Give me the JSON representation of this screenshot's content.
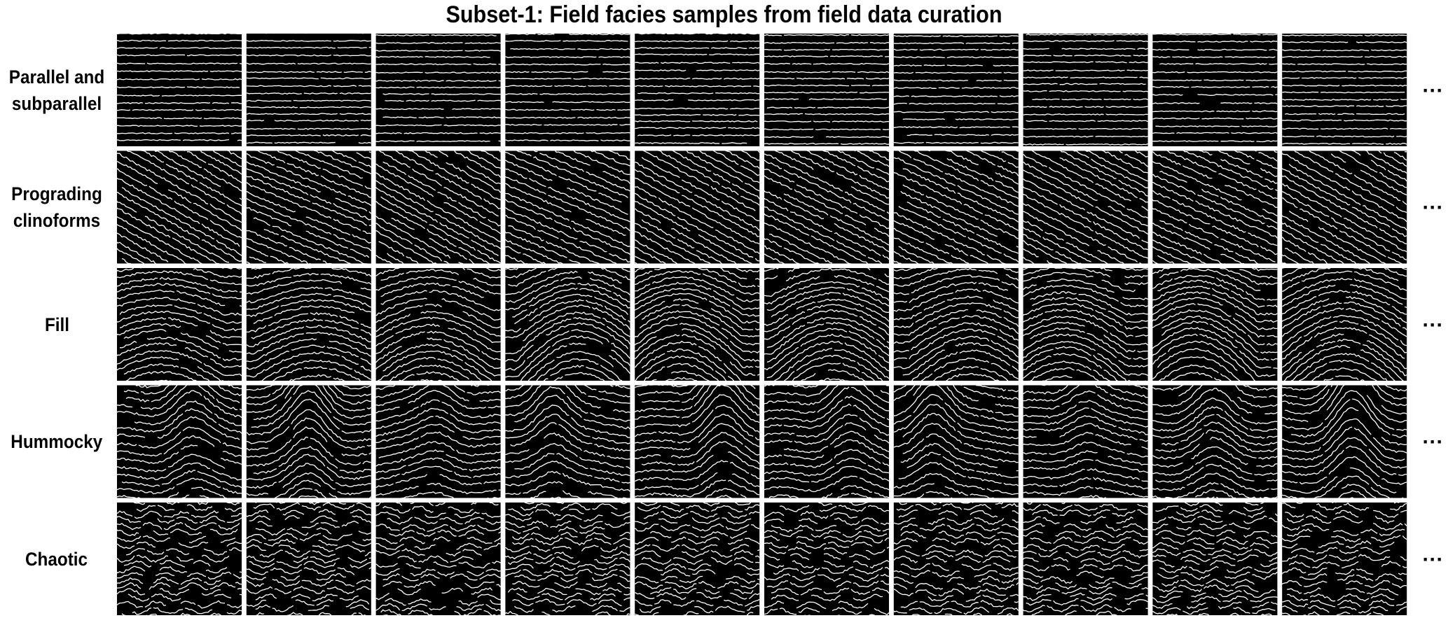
{
  "title": "Subset-1: Field facies samples from field data curation",
  "rows": [
    {
      "label": "Parallel and subparallel",
      "more": "···"
    },
    {
      "label": "Prograding clinoforms",
      "more": "···"
    },
    {
      "label": "Fill",
      "more": "···"
    },
    {
      "label": "Hummocky",
      "more": "···"
    },
    {
      "label": "Chaotic",
      "more": "···"
    }
  ]
}
